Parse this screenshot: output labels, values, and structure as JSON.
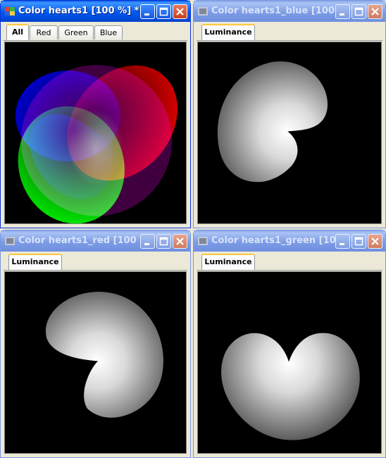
{
  "windows": [
    {
      "title": "Color hearts1 [100 %] *",
      "active": true,
      "tabs": [
        "All",
        "Red",
        "Green",
        "Blue"
      ],
      "image": "color-hearts-composite"
    },
    {
      "title": "Color hearts1_blue [100 ...",
      "active": false,
      "tabs": [
        "Luminance"
      ],
      "image": "blue-channel-heart"
    },
    {
      "title": "Color hearts1_red [100 ...",
      "active": false,
      "tabs": [
        "Luminance"
      ],
      "image": "red-channel-heart"
    },
    {
      "title": "Color hearts1_green [10...",
      "active": false,
      "tabs": [
        "Luminance"
      ],
      "image": "green-channel-heart"
    }
  ],
  "icons": {
    "window": "image-document-icon",
    "minimize": "minimize-icon",
    "maximize": "maximize-icon",
    "close": "close-icon"
  },
  "colors": {
    "active_title": "#0058ee",
    "inactive_title": "#7d9ce6",
    "tab_highlight": "#ffc83c",
    "canvas": "#000000"
  }
}
